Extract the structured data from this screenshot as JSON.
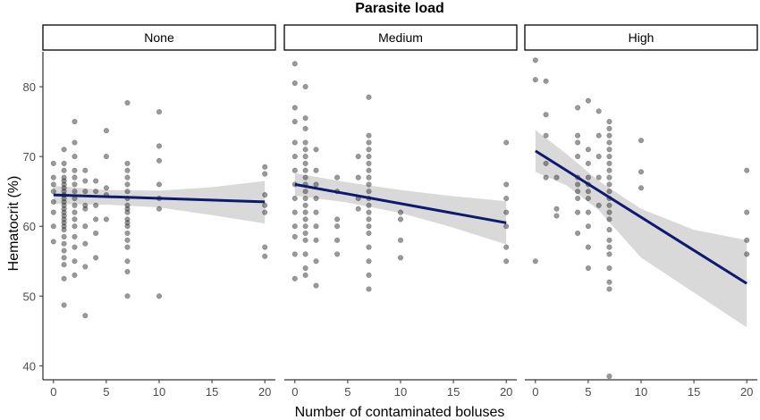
{
  "chart_data": {
    "type": "scatter",
    "title": "Parasite load",
    "xlabel": "Number of contaminated boluses",
    "ylabel": "Hematocrit (%)",
    "xlim": [
      -1,
      21
    ],
    "ylim": [
      38,
      85
    ],
    "x_ticks": [
      0,
      5,
      10,
      15,
      20
    ],
    "y_ticks": [
      40,
      50,
      60,
      70,
      80
    ],
    "grid": false,
    "point_color": "#333333",
    "line_color": "#0d1a6e",
    "band_color": "#d9d9d9",
    "panels": [
      {
        "label": "None",
        "points": [
          [
            0,
            57.8
          ],
          [
            0,
            60
          ],
          [
            0,
            62
          ],
          [
            0,
            63.5
          ],
          [
            0,
            65
          ],
          [
            0,
            66
          ],
          [
            0,
            67
          ],
          [
            0,
            69
          ],
          [
            1,
            48.7
          ],
          [
            1,
            52.5
          ],
          [
            1,
            54.5
          ],
          [
            1,
            55.5
          ],
          [
            1,
            56.5
          ],
          [
            1,
            57.5
          ],
          [
            1,
            58.5
          ],
          [
            1,
            59.5
          ],
          [
            1,
            60
          ],
          [
            1,
            60.5
          ],
          [
            1,
            61
          ],
          [
            1,
            61.5
          ],
          [
            1,
            62
          ],
          [
            1,
            62.5
          ],
          [
            1,
            63
          ],
          [
            1,
            63.5
          ],
          [
            1,
            64
          ],
          [
            1,
            64.5
          ],
          [
            1,
            65
          ],
          [
            1,
            65.5
          ],
          [
            1,
            66
          ],
          [
            1,
            66.5
          ],
          [
            1,
            67
          ],
          [
            1,
            68
          ],
          [
            1,
            69
          ],
          [
            1,
            71
          ],
          [
            2,
            53
          ],
          [
            2,
            55
          ],
          [
            2,
            57
          ],
          [
            2,
            58.5
          ],
          [
            2,
            60
          ],
          [
            2,
            61
          ],
          [
            2,
            62
          ],
          [
            2,
            63
          ],
          [
            2,
            64
          ],
          [
            2,
            65
          ],
          [
            2,
            66
          ],
          [
            2,
            67
          ],
          [
            2,
            68
          ],
          [
            2,
            70
          ],
          [
            2,
            72
          ],
          [
            2,
            75
          ],
          [
            3,
            47.2
          ],
          [
            3,
            54.2
          ],
          [
            3,
            57.5
          ],
          [
            3,
            60
          ],
          [
            3,
            62.5
          ],
          [
            3,
            63
          ],
          [
            3,
            65
          ],
          [
            3,
            66.5
          ],
          [
            3,
            68
          ],
          [
            4,
            55.5
          ],
          [
            4,
            59
          ],
          [
            4,
            61
          ],
          [
            4,
            63
          ],
          [
            4,
            65
          ],
          [
            4,
            66.5
          ],
          [
            5,
            61
          ],
          [
            5,
            64.5
          ],
          [
            5,
            65.5
          ],
          [
            5,
            70
          ],
          [
            5,
            73.7
          ],
          [
            7,
            50
          ],
          [
            7,
            53.5
          ],
          [
            7,
            55
          ],
          [
            7,
            57
          ],
          [
            7,
            58
          ],
          [
            7,
            59
          ],
          [
            7,
            60
          ],
          [
            7,
            60.5
          ],
          [
            7,
            61
          ],
          [
            7,
            62
          ],
          [
            7,
            62.5
          ],
          [
            7,
            63
          ],
          [
            7,
            64
          ],
          [
            7,
            65
          ],
          [
            7,
            66
          ],
          [
            7,
            67
          ],
          [
            7,
            68
          ],
          [
            7,
            69
          ],
          [
            7,
            77.7
          ],
          [
            10,
            50
          ],
          [
            10,
            62.5
          ],
          [
            10,
            64
          ],
          [
            10,
            66
          ],
          [
            10,
            69.4
          ],
          [
            10,
            71.5
          ],
          [
            10,
            76.4
          ],
          [
            20,
            55.7
          ],
          [
            20,
            57
          ],
          [
            20,
            62
          ],
          [
            20,
            63
          ],
          [
            20,
            64.5
          ],
          [
            20,
            67.5
          ],
          [
            20,
            68.5
          ]
        ],
        "fit": [
          [
            0,
            64.5
          ],
          [
            20,
            63.5
          ]
        ],
        "band_upper": [
          [
            0,
            65.8
          ],
          [
            5,
            65.2
          ],
          [
            10,
            65.1
          ],
          [
            15,
            65.6
          ],
          [
            20,
            66.5
          ]
        ],
        "band_lower": [
          [
            0,
            63.2
          ],
          [
            5,
            63.1
          ],
          [
            10,
            62.7
          ],
          [
            15,
            61.6
          ],
          [
            20,
            60.4
          ]
        ]
      },
      {
        "label": "Medium",
        "points": [
          [
            0,
            52.5
          ],
          [
            0,
            56
          ],
          [
            0,
            58.5
          ],
          [
            0,
            60
          ],
          [
            0,
            62
          ],
          [
            0,
            64
          ],
          [
            0,
            66
          ],
          [
            0,
            68
          ],
          [
            0,
            70
          ],
          [
            0,
            72
          ],
          [
            0,
            75
          ],
          [
            0,
            77
          ],
          [
            0,
            80.5
          ],
          [
            0,
            83.3
          ],
          [
            1,
            53
          ],
          [
            1,
            54
          ],
          [
            1,
            56
          ],
          [
            1,
            58
          ],
          [
            1,
            59
          ],
          [
            1,
            60
          ],
          [
            1,
            61
          ],
          [
            1,
            62
          ],
          [
            1,
            63
          ],
          [
            1,
            64
          ],
          [
            1,
            65
          ],
          [
            1,
            66
          ],
          [
            1,
            67
          ],
          [
            1,
            68
          ],
          [
            1,
            69
          ],
          [
            1,
            70
          ],
          [
            1,
            71
          ],
          [
            1,
            72
          ],
          [
            1,
            74
          ],
          [
            1,
            75.5
          ],
          [
            1,
            80
          ],
          [
            2,
            51.5
          ],
          [
            2,
            55
          ],
          [
            2,
            58
          ],
          [
            2,
            60
          ],
          [
            2,
            62
          ],
          [
            2,
            64
          ],
          [
            2,
            66
          ],
          [
            2,
            68
          ],
          [
            2,
            71
          ],
          [
            4,
            56
          ],
          [
            4,
            58
          ],
          [
            4,
            60
          ],
          [
            4,
            61
          ],
          [
            4,
            65
          ],
          [
            4,
            67
          ],
          [
            6,
            62.5
          ],
          [
            6,
            64
          ],
          [
            6,
            67
          ],
          [
            6,
            70
          ],
          [
            7,
            51
          ],
          [
            7,
            53
          ],
          [
            7,
            55
          ],
          [
            7,
            57
          ],
          [
            7,
            59
          ],
          [
            7,
            60
          ],
          [
            7,
            61
          ],
          [
            7,
            62
          ],
          [
            7,
            63
          ],
          [
            7,
            64
          ],
          [
            7,
            65
          ],
          [
            7,
            66
          ],
          [
            7,
            67
          ],
          [
            7,
            68
          ],
          [
            7,
            69
          ],
          [
            7,
            70
          ],
          [
            7,
            71
          ],
          [
            7,
            72
          ],
          [
            7,
            73
          ],
          [
            7,
            78.5
          ],
          [
            10,
            55.5
          ],
          [
            10,
            58
          ],
          [
            10,
            61
          ],
          [
            10,
            62
          ],
          [
            20,
            55
          ],
          [
            20,
            57
          ],
          [
            20,
            60
          ],
          [
            20,
            62
          ],
          [
            20,
            64
          ],
          [
            20,
            66
          ],
          [
            20,
            72
          ]
        ],
        "fit": [
          [
            0,
            66
          ],
          [
            20,
            60.5
          ]
        ],
        "band_upper": [
          [
            0,
            67.6
          ],
          [
            5,
            66.3
          ],
          [
            10,
            65.2
          ],
          [
            15,
            64.3
          ],
          [
            20,
            63.6
          ]
        ],
        "band_lower": [
          [
            0,
            64.4
          ],
          [
            5,
            63.4
          ],
          [
            10,
            61.9
          ],
          [
            15,
            59.8
          ],
          [
            20,
            57.4
          ]
        ]
      },
      {
        "label": "High",
        "points": [
          [
            0,
            55
          ],
          [
            0,
            81
          ],
          [
            0,
            83.8
          ],
          [
            1,
            67
          ],
          [
            1,
            69
          ],
          [
            1,
            73
          ],
          [
            1,
            76
          ],
          [
            1,
            80.8
          ],
          [
            2,
            61.5
          ],
          [
            2,
            62.5
          ],
          [
            2,
            67
          ],
          [
            4,
            59
          ],
          [
            4,
            62
          ],
          [
            4,
            64
          ],
          [
            4,
            65
          ],
          [
            4,
            66
          ],
          [
            4,
            67
          ],
          [
            4,
            70
          ],
          [
            4,
            72
          ],
          [
            4,
            73
          ],
          [
            4,
            77
          ],
          [
            5,
            54
          ],
          [
            5,
            57
          ],
          [
            5,
            60
          ],
          [
            5,
            62
          ],
          [
            5,
            64
          ],
          [
            5,
            65
          ],
          [
            5,
            66
          ],
          [
            5,
            67
          ],
          [
            5,
            69
          ],
          [
            5,
            71
          ],
          [
            5,
            78
          ],
          [
            6,
            63
          ],
          [
            6,
            67
          ],
          [
            6,
            70
          ],
          [
            6,
            73
          ],
          [
            6,
            76.5
          ],
          [
            7,
            38.5
          ],
          [
            7,
            51
          ],
          [
            7,
            52
          ],
          [
            7,
            54
          ],
          [
            7,
            56
          ],
          [
            7,
            57
          ],
          [
            7,
            58
          ],
          [
            7,
            59.5
          ],
          [
            7,
            61
          ],
          [
            7,
            62
          ],
          [
            7,
            63
          ],
          [
            7,
            64
          ],
          [
            7,
            65
          ],
          [
            7,
            66
          ],
          [
            7,
            67
          ],
          [
            7,
            68
          ],
          [
            7,
            69
          ],
          [
            7,
            70
          ],
          [
            7,
            71
          ],
          [
            7,
            72
          ],
          [
            7,
            73
          ],
          [
            7,
            74
          ],
          [
            7,
            75
          ],
          [
            10,
            65.5
          ],
          [
            10,
            67.8
          ],
          [
            10,
            72.3
          ],
          [
            20,
            56
          ],
          [
            20,
            58
          ],
          [
            20,
            62
          ],
          [
            20,
            68
          ]
        ],
        "fit": [
          [
            0,
            70.8
          ],
          [
            20,
            51.8
          ]
        ],
        "band_upper": [
          [
            0,
            73.8
          ],
          [
            3,
            70.3
          ],
          [
            6,
            66.5
          ],
          [
            10,
            62.5
          ],
          [
            15,
            59.5
          ],
          [
            20,
            58
          ]
        ],
        "band_lower": [
          [
            0,
            67.8
          ],
          [
            3,
            65.8
          ],
          [
            6,
            62.3
          ],
          [
            10,
            55.5
          ],
          [
            15,
            50.5
          ],
          [
            20,
            45.5
          ]
        ]
      }
    ]
  }
}
